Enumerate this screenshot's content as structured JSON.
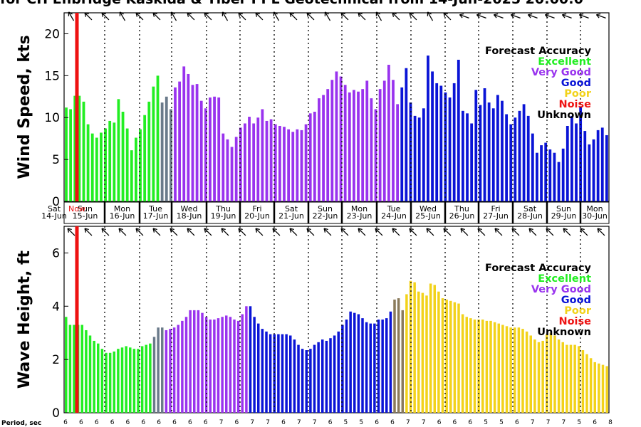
{
  "title": "for CH Enbridge  Kaskida & Tiber PPL Geotechnical from 14-Jun-2025 20:00:0",
  "period_label": "Period, sec",
  "colors": {
    "Excellent": "#22ee22",
    "Very Good": "#9933ee",
    "Good": "#0a14d6",
    "Poor": "#f2d21a",
    "Noise": "#ee1111",
    "Unknown": "#000000",
    "transition_green_purple": "#6a7a8a",
    "transition_purple_yellow": "#8a7a5a"
  },
  "legend": {
    "title": "Forecast Accuracy",
    "entries": [
      "Excellent",
      "Very Good",
      "Good",
      "Poor",
      "Noise",
      "Unknown"
    ]
  },
  "now_marker_label": "Now",
  "chart_data": [
    {
      "type": "bar",
      "ylabel": "Wind Speed, kts",
      "ylim": [
        0,
        22.5
      ],
      "yticks": [
        0,
        5,
        10,
        15,
        20
      ],
      "grid": "vertical dotted at day boundaries",
      "days": [
        {
          "dow": "Sat",
          "date": "14-Jun"
        },
        {
          "dow": "Sun",
          "date": "15-Jun"
        },
        {
          "dow": "Mon",
          "date": "16-Jun"
        },
        {
          "dow": "Tue",
          "date": "17-Jun"
        },
        {
          "dow": "Wed",
          "date": "18-Jun"
        },
        {
          "dow": "Thu",
          "date": "19-Jun"
        },
        {
          "dow": "Fri",
          "date": "20-Jun"
        },
        {
          "dow": "Sat",
          "date": "21-Jun"
        },
        {
          "dow": "Sun",
          "date": "22-Jun"
        },
        {
          "dow": "Mon",
          "date": "23-Jun"
        },
        {
          "dow": "Tue",
          "date": "24-Jun"
        },
        {
          "dow": "Wed",
          "date": "25-Jun"
        },
        {
          "dow": "Thu",
          "date": "26-Jun"
        },
        {
          "dow": "Fri",
          "date": "27-Jun"
        },
        {
          "dow": "Sat",
          "date": "28-Jun"
        },
        {
          "dow": "Sun",
          "date": "29-Jun"
        },
        {
          "dow": "Mon",
          "date": "30-Jun"
        }
      ],
      "values": [
        11.2,
        11.0,
        12.6,
        12.6,
        11.9,
        9.2,
        8.1,
        7.6,
        8.2,
        8.7,
        9.6,
        9.4,
        12.2,
        10.7,
        8.7,
        6.1,
        7.6,
        8.6,
        10.3,
        11.9,
        13.7,
        15.0,
        11.8,
        12.5,
        11.0,
        13.6,
        14.3,
        16.1,
        15.2,
        13.9,
        14.0,
        12.0,
        11.1,
        12.4,
        12.5,
        12.4,
        8.1,
        7.4,
        6.5,
        7.7,
        8.8,
        9.3,
        10.1,
        9.3,
        10.0,
        11.0,
        9.6,
        9.8,
        9.2,
        9.0,
        8.9,
        8.6,
        8.3,
        8.6,
        8.5,
        9.2,
        10.5,
        10.7,
        12.3,
        12.7,
        13.4,
        14.5,
        15.5,
        14.9,
        13.9,
        13.0,
        13.3,
        13.1,
        13.4,
        14.4,
        12.3,
        11.0,
        13.4,
        14.4,
        16.3,
        14.5,
        11.6,
        13.6,
        15.9,
        11.8,
        10.2,
        10.0,
        11.1,
        17.4,
        15.5,
        14.1,
        13.8,
        13.0,
        12.4,
        14.1,
        16.9,
        10.8,
        10.5,
        9.3,
        13.3,
        11.5,
        13.5,
        11.8,
        11.1,
        12.7,
        12.0,
        10.4,
        9.2,
        10.0,
        10.8,
        11.6,
        10.2,
        8.1,
        5.8,
        6.7,
        7.0,
        6.2,
        5.8,
        4.7,
        6.3,
        9.0,
        10.2,
        9.3,
        11.3,
        8.4,
        6.8,
        7.4,
        8.5,
        8.8,
        7.9
      ],
      "categories_per_bar": [
        "E",
        "E",
        "E",
        "E",
        "E",
        "E",
        "E",
        "E",
        "E",
        "E",
        "E",
        "E",
        "E",
        "E",
        "E",
        "E",
        "E",
        "E",
        "E",
        "E",
        "E",
        "E",
        "T",
        "T",
        "T",
        "V",
        "V",
        "V",
        "V",
        "V",
        "V",
        "V",
        "V",
        "V",
        "V",
        "V",
        "V",
        "V",
        "V",
        "V",
        "V",
        "V",
        "V",
        "V",
        "V",
        "V",
        "V",
        "V",
        "V",
        "V",
        "V",
        "V",
        "V",
        "V",
        "V",
        "V",
        "V",
        "V",
        "V",
        "V",
        "V",
        "V",
        "V",
        "V",
        "V",
        "V",
        "V",
        "V",
        "V",
        "V",
        "V",
        "V",
        "V",
        "V",
        "V",
        "V",
        "V",
        "G",
        "G",
        "G",
        "G",
        "G",
        "G",
        "G",
        "G",
        "G",
        "G",
        "G",
        "G",
        "G",
        "G",
        "G",
        "G",
        "G",
        "G",
        "G",
        "G",
        "G",
        "G",
        "G",
        "G",
        "G",
        "G",
        "G",
        "G",
        "G",
        "G",
        "G",
        "G",
        "G",
        "G",
        "G",
        "G",
        "G",
        "G",
        "G",
        "G",
        "G",
        "G",
        "G",
        "G",
        "G",
        "G",
        "G",
        "G"
      ]
    },
    {
      "type": "bar",
      "ylabel": "Wave Height, ft",
      "ylim": [
        0,
        7
      ],
      "yticks": [
        0,
        2,
        4,
        6
      ],
      "values": [
        3.6,
        3.3,
        3.3,
        3.3,
        3.3,
        3.1,
        2.9,
        2.7,
        2.6,
        2.4,
        2.25,
        2.25,
        2.3,
        2.4,
        2.45,
        2.5,
        2.45,
        2.4,
        2.4,
        2.5,
        2.55,
        2.6,
        2.85,
        3.2,
        3.2,
        3.1,
        3.15,
        3.2,
        3.3,
        3.45,
        3.6,
        3.85,
        3.85,
        3.85,
        3.75,
        3.6,
        3.5,
        3.5,
        3.55,
        3.6,
        3.65,
        3.6,
        3.5,
        3.45,
        3.7,
        4.0,
        4.0,
        3.6,
        3.35,
        3.15,
        3.05,
        2.95,
        2.95,
        2.95,
        2.95,
        2.95,
        2.9,
        2.75,
        2.55,
        2.4,
        2.35,
        2.4,
        2.55,
        2.65,
        2.75,
        2.7,
        2.8,
        2.9,
        3.05,
        3.3,
        3.5,
        3.8,
        3.75,
        3.7,
        3.55,
        3.4,
        3.35,
        3.35,
        3.5,
        3.5,
        3.55,
        3.8,
        4.25,
        4.3,
        3.85,
        4.45,
        4.95,
        4.9,
        4.55,
        4.5,
        4.4,
        4.85,
        4.8,
        4.55,
        4.3,
        4.25,
        4.2,
        4.15,
        4.1,
        3.7,
        3.6,
        3.55,
        3.5,
        3.5,
        3.5,
        3.45,
        3.45,
        3.4,
        3.35,
        3.3,
        3.25,
        3.2,
        3.2,
        3.2,
        3.15,
        3.05,
        2.9,
        2.75,
        2.65,
        2.7,
        2.95,
        3.0,
        2.9,
        2.75,
        2.65,
        2.55,
        2.55,
        2.55,
        2.5,
        2.35,
        2.2,
        2.05,
        1.9,
        1.85,
        1.8,
        1.75
      ],
      "categories_per_bar": [
        "E",
        "E",
        "E",
        "E",
        "E",
        "E",
        "E",
        "E",
        "E",
        "E",
        "E",
        "E",
        "E",
        "E",
        "E",
        "E",
        "E",
        "E",
        "E",
        "E",
        "E",
        "E",
        "T",
        "T",
        "T",
        "V",
        "V",
        "V",
        "V",
        "V",
        "V",
        "V",
        "V",
        "V",
        "V",
        "V",
        "V",
        "V",
        "V",
        "V",
        "V",
        "V",
        "V",
        "V",
        "V",
        "V",
        "G",
        "G",
        "G",
        "G",
        "G",
        "G",
        "G",
        "G",
        "G",
        "G",
        "G",
        "G",
        "G",
        "G",
        "G",
        "G",
        "G",
        "G",
        "G",
        "G",
        "G",
        "G",
        "G",
        "G",
        "G",
        "G",
        "G",
        "G",
        "G",
        "G",
        "G",
        "G",
        "G",
        "G",
        "G",
        "G",
        "T2",
        "T2",
        "T2",
        "P",
        "P",
        "P",
        "P",
        "P",
        "P",
        "P",
        "P",
        "P",
        "P",
        "P",
        "P",
        "P",
        "P",
        "P",
        "P",
        "P",
        "P",
        "P",
        "P",
        "P",
        "P",
        "P",
        "P",
        "P",
        "P",
        "P",
        "P",
        "P",
        "P",
        "P",
        "P",
        "P",
        "P",
        "P",
        "P",
        "P",
        "P",
        "P",
        "P",
        "P",
        "P",
        "P",
        "P",
        "P",
        "P",
        "P",
        "P",
        "P",
        "P",
        "P"
      ]
    }
  ],
  "periods": [
    6,
    6,
    6,
    6,
    6,
    6,
    6,
    6,
    6,
    6,
    7,
    6,
    7,
    7,
    6,
    7,
    7,
    6,
    5,
    5,
    6,
    6,
    7,
    7,
    6,
    6,
    6,
    5,
    5,
    6,
    7,
    7,
    7,
    5,
    6,
    8
  ]
}
